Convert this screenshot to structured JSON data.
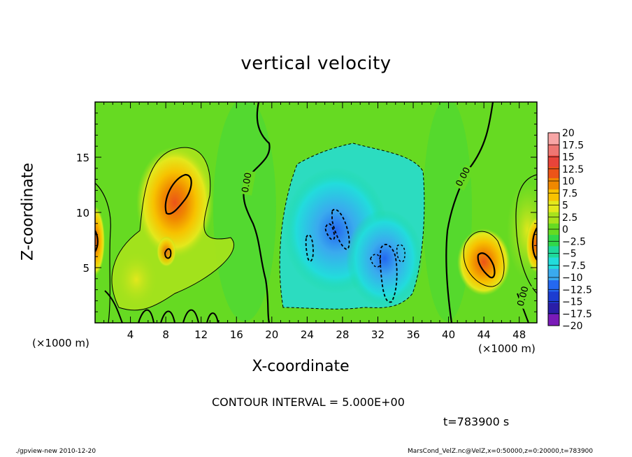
{
  "title": "vertical velocity",
  "xlabel": "X-coordinate",
  "ylabel": "Z-coordinate",
  "x_unit_left": "(×1000 m)",
  "x_unit_right": "(×1000 m)",
  "contour_interval": "CONTOUR INTERVAL = 5.000E+00",
  "time": "t=783900 s",
  "footer_left": "./gpview-new  2010-12-20",
  "footer_right": "MarsCond_VelZ.nc@VelZ,x=0:50000,z=0:20000,t=783900",
  "chart_data": {
    "type": "heatmap",
    "title": "vertical velocity",
    "xlabel": "X-coordinate",
    "ylabel": "Z-coordinate",
    "xlim": [
      0,
      50
    ],
    "ylim": [
      0,
      20
    ],
    "x_ticks": [
      "4",
      "8",
      "12",
      "16",
      "20",
      "24",
      "28",
      "32",
      "36",
      "40",
      "44",
      "48"
    ],
    "y_ticks": [
      "5",
      "10",
      "15"
    ],
    "contour_labels": [
      "0.00",
      "0.00",
      "0.00",
      "0.00"
    ],
    "colorbar": {
      "labels": [
        "20",
        "17.5",
        "15",
        "12.5",
        "10",
        "7.5",
        "5",
        "2.5",
        "0",
        "−2.5",
        "−5",
        "−7.5",
        "−10",
        "−12.5",
        "−15",
        "−17.5",
        "−20"
      ],
      "colors": [
        "#f7a6a6",
        "#ef7672",
        "#e8443a",
        "#ec5418",
        "#f08800",
        "#f7c200",
        "#e3e81c",
        "#a8e21c",
        "#66da22",
        "#30d84a",
        "#1ed99b",
        "#22dcdc",
        "#3aaaee",
        "#2468f0",
        "#1c3cd0",
        "#2a1ea8",
        "#7a1ab8"
      ]
    },
    "features": [
      {
        "name": "updraft-left",
        "x": 9.5,
        "z": 11.5,
        "peak": 12.5
      },
      {
        "name": "updraft-right",
        "x": 43.5,
        "z": 6,
        "peak": 12.5
      },
      {
        "name": "updraft-left-edge",
        "x": 0.3,
        "z": 7.5,
        "peak": 10
      },
      {
        "name": "updraft-right-edge",
        "x": 49.5,
        "z": 7.5,
        "peak": 10
      },
      {
        "name": "downdraft-center",
        "x": 29,
        "z": 8,
        "peak": -10
      }
    ]
  }
}
